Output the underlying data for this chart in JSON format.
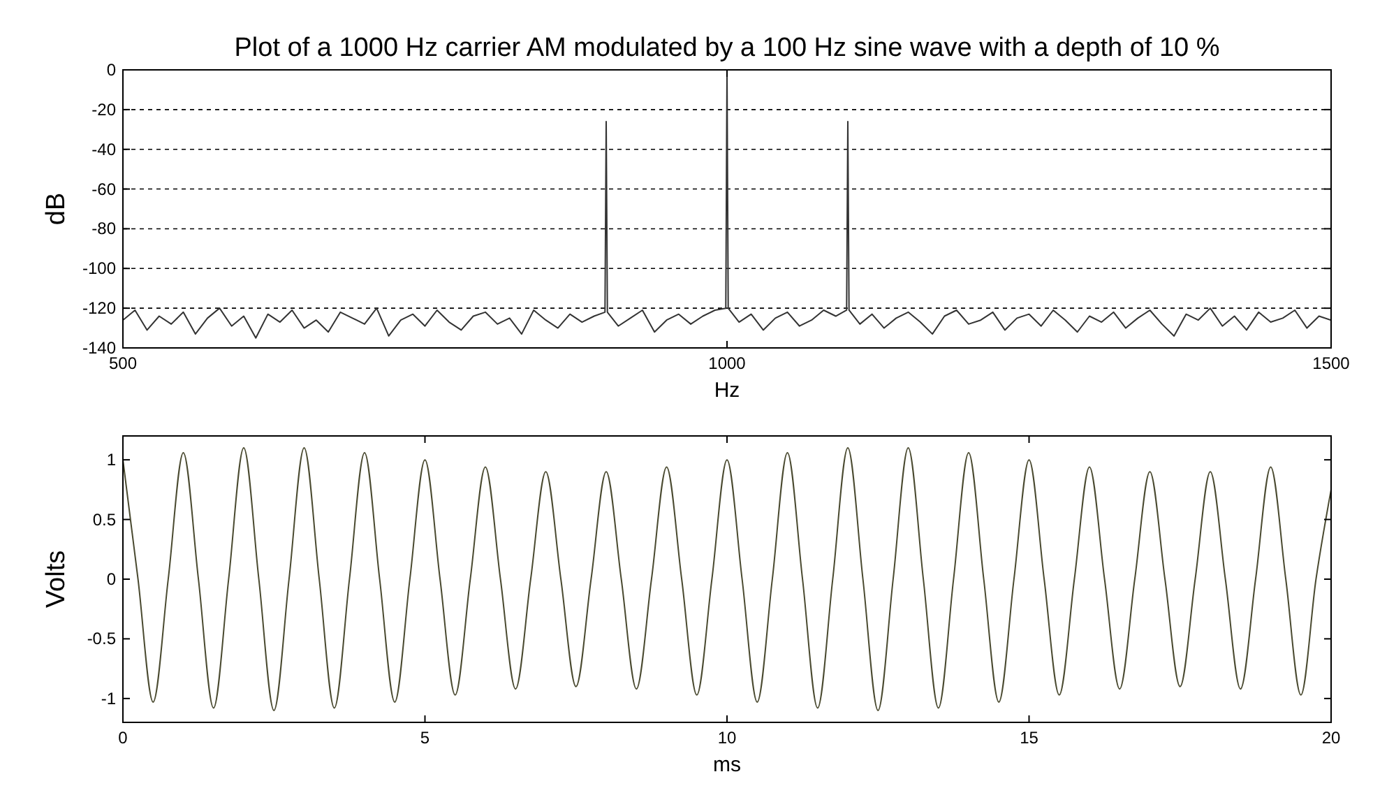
{
  "chart_data": [
    {
      "type": "line",
      "title": "Plot of a 1000 Hz carrier AM modulated by a 100 Hz sine wave with a depth of 10 %",
      "xlabel": "Hz",
      "ylabel": "dB",
      "xlim": [
        500,
        1500
      ],
      "xticks": [
        500,
        1000,
        1500
      ],
      "ylim": [
        -140,
        0
      ],
      "yticks": [
        0,
        -20,
        -40,
        -60,
        -80,
        -100,
        -120,
        -140
      ],
      "grid": "y",
      "series": [
        {
          "color": "#333333",
          "x": [
            500,
            510,
            520,
            530,
            540,
            550,
            560,
            570,
            580,
            590,
            600,
            610,
            620,
            630,
            640,
            650,
            660,
            670,
            680,
            690,
            700,
            710,
            720,
            730,
            740,
            750,
            760,
            770,
            780,
            790,
            800,
            810,
            820,
            830,
            840,
            850,
            860,
            870,
            880,
            890,
            899,
            900,
            901,
            910,
            920,
            930,
            940,
            950,
            960,
            970,
            980,
            990,
            999,
            1000,
            1001,
            1010,
            1020,
            1030,
            1040,
            1050,
            1060,
            1070,
            1080,
            1090,
            1099,
            1100,
            1101,
            1110,
            1120,
            1130,
            1140,
            1150,
            1160,
            1170,
            1180,
            1190,
            1200,
            1210,
            1220,
            1230,
            1240,
            1250,
            1260,
            1270,
            1280,
            1290,
            1300,
            1310,
            1320,
            1330,
            1340,
            1350,
            1360,
            1370,
            1380,
            1390,
            1400,
            1410,
            1420,
            1430,
            1440,
            1450,
            1460,
            1470,
            1480,
            1490,
            1500
          ],
          "values": [
            -126,
            -121,
            -131,
            -124,
            -128,
            -122,
            -133,
            -125,
            -120,
            -129,
            -124,
            -135,
            -123,
            -127,
            -121,
            -130,
            -126,
            -132,
            -122,
            -125,
            -128,
            -120,
            -134,
            -126,
            -123,
            -129,
            -121,
            -127,
            -131,
            -124,
            -122,
            -128,
            -125,
            -133,
            -121,
            -126,
            -130,
            -123,
            -127,
            -124,
            -122,
            -26,
            -122,
            -129,
            -125,
            -121,
            -132,
            -126,
            -123,
            -128,
            -124,
            -121,
            -120,
            0,
            -120,
            -127,
            -123,
            -131,
            -125,
            -122,
            -129,
            -126,
            -121,
            -124,
            -121,
            -26,
            -121,
            -128,
            -123,
            -130,
            -125,
            -122,
            -127,
            -133,
            -124,
            -121,
            -128,
            -126,
            -122,
            -131,
            -125,
            -123,
            -129,
            -121,
            -126,
            -132,
            -124,
            -127,
            -122,
            -130,
            -125,
            -121,
            -128,
            -134,
            -123,
            -126,
            -120,
            -129,
            -124,
            -131,
            -122,
            -127,
            -125,
            -121,
            -130,
            -124,
            -126
          ]
        }
      ]
    },
    {
      "type": "line",
      "xlabel": "ms",
      "ylabel": "Volts",
      "xlim": [
        0,
        20
      ],
      "xticks": [
        0,
        5,
        10,
        15,
        20
      ],
      "ylim": [
        -1.2,
        1.2
      ],
      "yticks": [
        -1,
        -0.5,
        0,
        0.5,
        1
      ],
      "series": [
        {
          "color": "#4a4a30",
          "x": [
            0,
            0.25,
            0.5,
            0.75,
            1,
            1.25,
            1.5,
            1.75,
            2,
            2.25,
            2.5,
            2.75,
            3,
            3.25,
            3.5,
            3.75,
            4,
            4.25,
            4.5,
            4.75,
            5,
            5.25,
            5.5,
            5.75,
            6,
            6.25,
            6.5,
            6.75,
            7,
            7.25,
            7.5,
            7.75,
            8,
            8.25,
            8.5,
            8.75,
            9,
            9.25,
            9.5,
            9.75,
            10,
            10.25,
            10.5,
            10.75,
            11,
            11.25,
            11.5,
            11.75,
            12,
            12.25,
            12.5,
            12.75,
            13,
            13.25,
            13.5,
            13.75,
            14,
            14.25,
            14.5,
            14.75,
            15,
            15.25,
            15.5,
            15.75,
            16,
            16.25,
            16.5,
            16.75,
            17,
            17.25,
            17.5,
            17.75,
            18,
            18.25,
            18.5,
            18.75,
            19,
            19.25,
            19.5,
            19.75,
            20
          ],
          "values": [
            1,
            0,
            -1.03,
            0,
            1.06,
            0,
            -1.08,
            0,
            1.1,
            0,
            -1.1,
            0,
            1.1,
            0,
            -1.08,
            0,
            1.06,
            0,
            -1.03,
            0,
            1,
            0,
            -0.97,
            0,
            0.94,
            0,
            -0.92,
            0,
            0.9,
            0,
            -0.9,
            0,
            0.9,
            0,
            -0.92,
            0,
            0.94,
            0,
            -0.97,
            0,
            1,
            0,
            -1.03,
            0,
            1.06,
            0,
            -1.08,
            0,
            1.1,
            0,
            -1.1,
            0,
            1.1,
            0,
            -1.08,
            0,
            1.06,
            0,
            -1.03,
            0,
            1,
            0,
            -0.97,
            0,
            0.94,
            0,
            -0.92,
            0,
            0.9,
            0,
            -0.9,
            0,
            0.9,
            0,
            -0.92,
            0,
            0.94,
            0,
            -0.97,
            0,
            0.75
          ]
        }
      ]
    }
  ]
}
